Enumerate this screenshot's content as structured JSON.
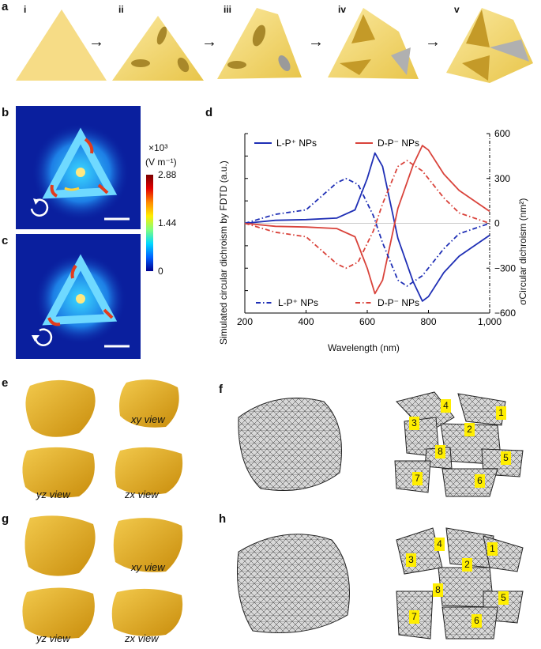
{
  "panels": {
    "a": {
      "label": "a",
      "steps": [
        "i",
        "ii",
        "iii",
        "iv",
        "v"
      ],
      "arrow": "→"
    },
    "b": {
      "label": "b"
    },
    "c": {
      "label": "c"
    },
    "d": {
      "label": "d"
    },
    "e": {
      "label": "e",
      "views": [
        "xy view",
        "yz view",
        "zx view"
      ]
    },
    "f": {
      "label": "f",
      "region_numbers": [
        "1",
        "2",
        "3",
        "4",
        "5",
        "6",
        "7",
        "8"
      ]
    },
    "g": {
      "label": "g",
      "views": [
        "xy view",
        "yz view",
        "zx view"
      ]
    },
    "h": {
      "label": "h",
      "region_numbers": [
        "1",
        "2",
        "3",
        "4",
        "5",
        "6",
        "7",
        "8"
      ]
    }
  },
  "colorbar": {
    "title_line1": "×10³",
    "title_line2": "(V m⁻¹)",
    "ticks": [
      "2.88",
      "1.44",
      "0"
    ]
  },
  "chart_data": {
    "type": "line",
    "xlabel": "Wavelength (nm)",
    "ylabel": "Simulated circular dichroism by FDTD (a.u.)",
    "y2label": "σCircular dichroism (nm²)",
    "xlim": [
      200,
      1000
    ],
    "xticks": [
      "200",
      "400",
      "600",
      "800",
      "1,000"
    ],
    "y2lim": [
      -600,
      600
    ],
    "y2ticks": [
      "600",
      "300",
      "0",
      "−300",
      "−600"
    ],
    "legend_top": [
      "L-P⁺ NPs",
      "D-P⁻ NPs"
    ],
    "legend_bottom": [
      "L-P⁺ NPs",
      "D-P⁻ NPs"
    ],
    "series": [
      {
        "name": "L-P⁺ NPs",
        "axis": "left",
        "style": "solid",
        "color": "#1f2fb5",
        "x": [
          200,
          300,
          400,
          500,
          560,
          600,
          625,
          650,
          700,
          750,
          780,
          800,
          850,
          900,
          950,
          1000
        ],
        "y": [
          0,
          20,
          25,
          35,
          90,
          300,
          470,
          380,
          -100,
          -390,
          -520,
          -490,
          -330,
          -220,
          -150,
          -80
        ]
      },
      {
        "name": "D-P⁻ NPs",
        "axis": "left",
        "style": "solid",
        "color": "#d9433b",
        "x": [
          200,
          300,
          400,
          500,
          560,
          600,
          625,
          650,
          700,
          750,
          780,
          800,
          850,
          900,
          950,
          1000
        ],
        "y": [
          0,
          -20,
          -25,
          -35,
          -90,
          -300,
          -470,
          -380,
          100,
          390,
          520,
          490,
          330,
          220,
          150,
          80
        ]
      },
      {
        "name": "L-P⁺ NPs",
        "axis": "right",
        "style": "dashdot",
        "color": "#1f2fb5",
        "x": [
          200,
          300,
          400,
          450,
          500,
          530,
          570,
          620,
          650,
          700,
          730,
          780,
          850,
          900,
          1000
        ],
        "y": [
          0,
          60,
          90,
          180,
          270,
          300,
          260,
          50,
          -130,
          -380,
          -420,
          -350,
          -170,
          -70,
          0
        ]
      },
      {
        "name": "D-P⁻ NPs",
        "axis": "right",
        "style": "dashdot",
        "color": "#d9433b",
        "x": [
          200,
          300,
          400,
          450,
          500,
          530,
          570,
          620,
          650,
          700,
          730,
          780,
          850,
          900,
          1000
        ],
        "y": [
          0,
          -60,
          -90,
          -180,
          -270,
          -300,
          -260,
          -50,
          130,
          380,
          420,
          350,
          170,
          70,
          0
        ]
      }
    ]
  }
}
